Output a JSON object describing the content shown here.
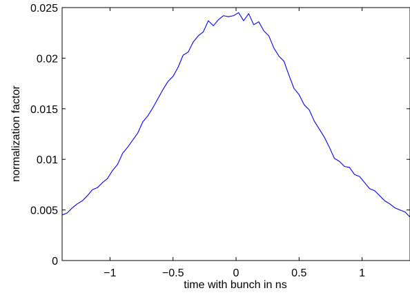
{
  "chart_data": {
    "type": "line",
    "title": "",
    "xlabel": "time with bunch in ns",
    "ylabel": "normalization factor",
    "xlim": [
      -1.38,
      1.38
    ],
    "ylim": [
      0,
      0.025
    ],
    "x_ticks": [
      -1,
      -0.5,
      0,
      0.5,
      1
    ],
    "x_tick_labels": [
      "−1",
      "−0.5",
      "0",
      "0.5",
      "1"
    ],
    "y_ticks": [
      0,
      0.005,
      0.01,
      0.015,
      0.02,
      0.025
    ],
    "y_tick_labels": [
      "0",
      "0.005",
      "0.01",
      "0.015",
      "0.02",
      "0.025"
    ],
    "grid": false,
    "legend": "none",
    "series": [
      {
        "color": "#0000ff",
        "x": [
          -1.38,
          -1.34,
          -1.3,
          -1.26,
          -1.22,
          -1.18,
          -1.14,
          -1.1,
          -1.06,
          -1.02,
          -0.98,
          -0.94,
          -0.9,
          -0.86,
          -0.82,
          -0.78,
          -0.74,
          -0.7,
          -0.66,
          -0.62,
          -0.58,
          -0.54,
          -0.5,
          -0.46,
          -0.42,
          -0.38,
          -0.34,
          -0.3,
          -0.26,
          -0.22,
          -0.18,
          -0.14,
          -0.1,
          -0.06,
          -0.02,
          0.02,
          0.06,
          0.1,
          0.14,
          0.18,
          0.22,
          0.26,
          0.3,
          0.34,
          0.38,
          0.42,
          0.46,
          0.5,
          0.54,
          0.58,
          0.62,
          0.66,
          0.7,
          0.74,
          0.78,
          0.82,
          0.86,
          0.9,
          0.94,
          0.98,
          1.02,
          1.06,
          1.1,
          1.14,
          1.18,
          1.22,
          1.26,
          1.3,
          1.34,
          1.38
        ],
        "y": [
          0.0045,
          0.0047,
          0.0052,
          0.0056,
          0.0059,
          0.0064,
          0.007,
          0.0072,
          0.0077,
          0.0081,
          0.0089,
          0.0095,
          0.0106,
          0.0112,
          0.0119,
          0.0126,
          0.0137,
          0.0143,
          0.0151,
          0.016,
          0.0169,
          0.0177,
          0.0182,
          0.0191,
          0.0203,
          0.0206,
          0.0216,
          0.0222,
          0.0226,
          0.0237,
          0.0232,
          0.0238,
          0.0242,
          0.0241,
          0.0242,
          0.0245,
          0.0237,
          0.0244,
          0.0233,
          0.0236,
          0.0227,
          0.0222,
          0.021,
          0.0202,
          0.0197,
          0.0183,
          0.017,
          0.0164,
          0.0154,
          0.0149,
          0.0138,
          0.013,
          0.0122,
          0.0112,
          0.0101,
          0.0098,
          0.0093,
          0.0092,
          0.0085,
          0.0083,
          0.0077,
          0.0071,
          0.0069,
          0.0064,
          0.0059,
          0.0056,
          0.0052,
          0.005,
          0.0048,
          0.0043
        ]
      }
    ]
  }
}
